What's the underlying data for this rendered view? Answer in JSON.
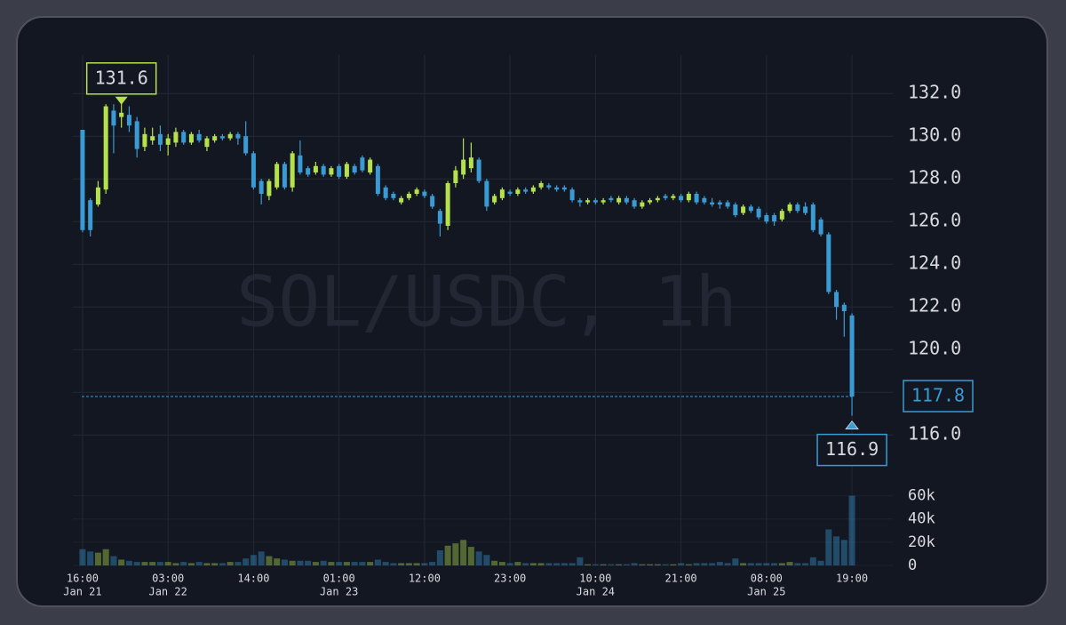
{
  "chart_data": {
    "type": "candlestick",
    "watermark": "SOL/USDC, 1h",
    "up_color": "#b5e24c",
    "down_color": "#3a9bd4",
    "xlim": [
      -1.25,
      104.25
    ],
    "xticks": [
      {
        "value": 0,
        "label": "16:00",
        "date": "Jan 21"
      },
      {
        "value": 11,
        "label": "03:00",
        "date": "Jan 22"
      },
      {
        "value": 22,
        "label": "14:00"
      },
      {
        "value": 33,
        "label": "01:00",
        "date": "Jan 23"
      },
      {
        "value": 44,
        "label": "12:00"
      },
      {
        "value": 55,
        "label": "23:00"
      },
      {
        "value": 66,
        "label": "10:00",
        "date": "Jan 24"
      },
      {
        "value": 77,
        "label": "21:00"
      },
      {
        "value": 88,
        "label": "08:00",
        "date": "Jan 25"
      },
      {
        "value": 99,
        "label": "19:00"
      }
    ],
    "ylim": [
      114.3,
      133.8
    ],
    "yticks": [
      {
        "value": 116,
        "label": "116.0"
      },
      {
        "value": 118,
        "label": "118.0"
      },
      {
        "value": 120,
        "label": "120.0"
      },
      {
        "value": 122,
        "label": "122.0"
      },
      {
        "value": 124,
        "label": "124.0"
      },
      {
        "value": 126,
        "label": "126.0"
      },
      {
        "value": 128,
        "label": "128.0"
      },
      {
        "value": 130,
        "label": "130.0"
      },
      {
        "value": 132,
        "label": "132.0"
      }
    ],
    "volume_ylim": [
      0,
      62000
    ],
    "volume_yticks": [
      0,
      {
        "value": 20000,
        "label": "20k"
      },
      {
        "value": 40000,
        "label": "40k"
      },
      {
        "value": 60000,
        "label": "60k"
      }
    ],
    "grid": true,
    "max_label": 131.6,
    "min_label": 116.9,
    "last_price": 117.8,
    "open": [
      130.3,
      127.0,
      126.8,
      127.5,
      131.2,
      130.9,
      131.0,
      130.7,
      129.5,
      129.8,
      130.1,
      129.6,
      129.7,
      130.2,
      129.7,
      130.1,
      129.5,
      129.8,
      130.0,
      129.9,
      130.1,
      130.0,
      129.2,
      127.9,
      127.2,
      127.6,
      128.7,
      127.6,
      129.1,
      128.5,
      128.3,
      128.6,
      128.2,
      128.6,
      128.1,
      128.6,
      129.0,
      128.3,
      128.6,
      127.6,
      127.3,
      126.9,
      127.1,
      127.3,
      127.4,
      127.2,
      126.5,
      125.8,
      127.8,
      128.2,
      128.5,
      128.9,
      127.9,
      126.9,
      127.1,
      127.4,
      127.3,
      127.5,
      127.4,
      127.6,
      127.7,
      127.6,
      127.6,
      127.5,
      127.0,
      126.9,
      127.0,
      126.9,
      127.1,
      126.9,
      127.1,
      127.0,
      126.7,
      126.9,
      127.0,
      127.2,
      127.1,
      127.2,
      127.0,
      127.3,
      127.1,
      126.9,
      126.9,
      126.9,
      126.8,
      126.4,
      126.7,
      126.6,
      126.3,
      126.3,
      126.1,
      126.5,
      126.8,
      126.7,
      126.8,
      126.1,
      125.4,
      122.7,
      122.1,
      121.6
    ],
    "high": [
      130.3,
      127.1,
      127.9,
      131.5,
      131.5,
      131.6,
      131.4,
      130.9,
      130.4,
      130.4,
      130.5,
      130.1,
      130.4,
      130.3,
      130.2,
      130.3,
      130.0,
      130.1,
      130.1,
      130.2,
      130.2,
      130.7,
      129.3,
      128.0,
      128.0,
      128.8,
      128.8,
      129.3,
      129.8,
      128.6,
      128.8,
      128.7,
      128.6,
      128.7,
      128.8,
      128.7,
      129.1,
      129.0,
      128.7,
      127.7,
      127.4,
      127.2,
      127.4,
      127.6,
      127.5,
      127.3,
      126.6,
      127.9,
      128.6,
      129.9,
      129.7,
      129.0,
      128.0,
      127.3,
      127.6,
      127.5,
      127.6,
      127.6,
      127.7,
      127.9,
      127.8,
      127.7,
      127.7,
      127.6,
      127.1,
      127.1,
      127.1,
      127.1,
      127.2,
      127.2,
      127.2,
      127.1,
      127.0,
      127.1,
      127.2,
      127.3,
      127.3,
      127.3,
      127.4,
      127.4,
      127.2,
      127.1,
      127.0,
      127.0,
      126.9,
      126.8,
      126.8,
      126.7,
      126.4,
      126.4,
      126.6,
      126.9,
      126.9,
      126.9,
      126.9,
      126.2,
      125.5,
      122.8,
      122.2,
      121.7
    ],
    "low": [
      125.5,
      125.3,
      126.7,
      127.3,
      129.2,
      130.4,
      130.2,
      129.0,
      129.3,
      129.6,
      129.3,
      129.1,
      129.5,
      129.6,
      129.6,
      129.7,
      129.3,
      129.7,
      129.8,
      129.8,
      129.6,
      129.1,
      127.5,
      126.8,
      127.0,
      127.5,
      127.5,
      127.4,
      128.2,
      128.1,
      128.2,
      128.1,
      128.1,
      128.0,
      128.0,
      128.2,
      128.3,
      128.2,
      127.2,
      127.0,
      127.0,
      126.8,
      127.0,
      127.2,
      127.1,
      126.6,
      125.3,
      125.6,
      127.6,
      128.0,
      128.3,
      127.8,
      126.5,
      126.8,
      127.0,
      127.2,
      127.2,
      127.3,
      127.3,
      127.5,
      127.5,
      127.4,
      127.4,
      126.9,
      126.7,
      126.8,
      126.8,
      126.8,
      126.9,
      126.8,
      126.8,
      126.6,
      126.6,
      126.8,
      126.9,
      127.0,
      127.0,
      126.9,
      126.9,
      126.8,
      126.8,
      126.7,
      126.6,
      126.6,
      126.2,
      126.3,
      126.4,
      126.1,
      125.9,
      125.8,
      126.0,
      126.4,
      126.4,
      126.3,
      125.5,
      125.3,
      122.6,
      121.4,
      120.6,
      116.9
    ],
    "close": [
      125.6,
      125.6,
      127.6,
      131.4,
      130.5,
      131.1,
      130.5,
      129.4,
      130.1,
      130.0,
      129.6,
      129.9,
      130.2,
      129.7,
      130.1,
      129.8,
      129.9,
      130.0,
      129.9,
      130.1,
      129.9,
      129.2,
      127.6,
      127.3,
      127.9,
      128.7,
      127.6,
      129.2,
      128.3,
      128.2,
      128.6,
      128.2,
      128.5,
      128.1,
      128.7,
      128.3,
      128.4,
      128.9,
      127.3,
      127.1,
      127.1,
      127.1,
      127.3,
      127.5,
      127.2,
      126.7,
      125.9,
      127.8,
      128.4,
      128.9,
      129.0,
      127.9,
      126.7,
      127.2,
      127.5,
      127.3,
      127.5,
      127.4,
      127.6,
      127.8,
      127.6,
      127.5,
      127.5,
      127.0,
      126.9,
      127.0,
      126.9,
      127.0,
      127.0,
      127.1,
      126.9,
      126.7,
      126.9,
      127.0,
      127.1,
      127.1,
      127.2,
      127.0,
      127.3,
      126.9,
      126.9,
      126.8,
      126.8,
      126.7,
      126.3,
      126.7,
      126.5,
      126.2,
      126.0,
      126.0,
      126.5,
      126.8,
      126.5,
      126.4,
      125.6,
      125.4,
      122.7,
      122.0,
      121.8,
      117.8
    ],
    "volume": [
      14000,
      12000,
      11000,
      14000,
      8000,
      5000,
      4000,
      3000,
      3000,
      3000,
      3000,
      3000,
      2000,
      3000,
      2000,
      3000,
      2000,
      2000,
      2000,
      3000,
      3000,
      6000,
      9000,
      12000,
      8000,
      6000,
      5000,
      4000,
      4000,
      4000,
      3000,
      4000,
      3000,
      3000,
      3000,
      3000,
      3000,
      3000,
      5000,
      3000,
      2000,
      2000,
      2000,
      2000,
      2000,
      3000,
      13000,
      17000,
      19000,
      22000,
      16000,
      12000,
      9000,
      4000,
      3000,
      2000,
      3000,
      2000,
      2000,
      2000,
      2000,
      2000,
      2000,
      2000,
      7000,
      1000,
      1000,
      1000,
      1000,
      1000,
      1000,
      2000,
      1000,
      1000,
      1000,
      1000,
      1000,
      2000,
      1000,
      2000,
      2000,
      2000,
      3000,
      2000,
      6000,
      2000,
      2000,
      2000,
      2000,
      2000,
      2000,
      3000,
      2000,
      2000,
      7000,
      4000,
      31000,
      25000,
      22000,
      60000
    ]
  }
}
